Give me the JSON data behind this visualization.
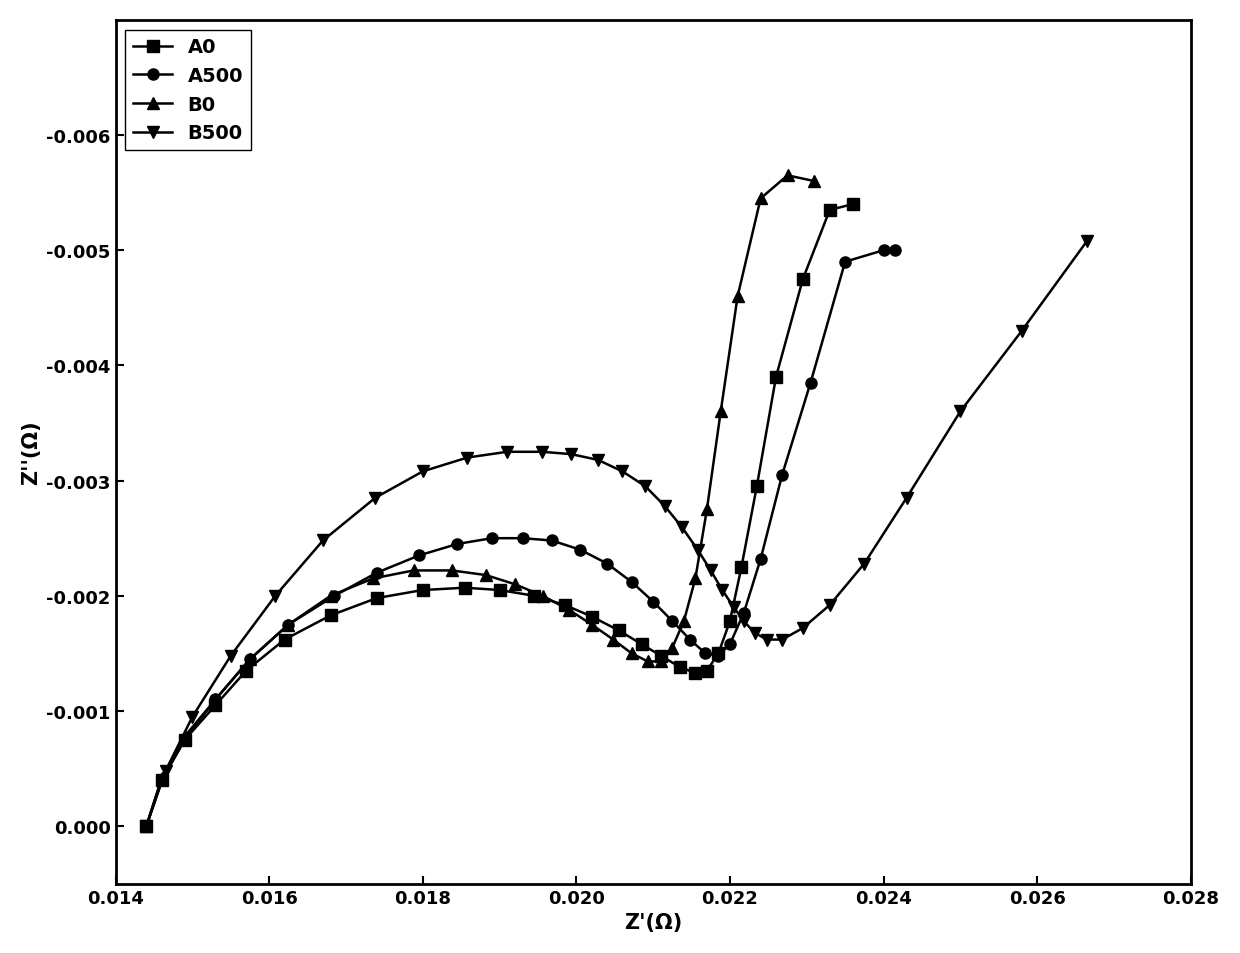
{
  "title": "",
  "xlabel": "Z'(Ω)",
  "ylabel": "Z''(Ω)",
  "xlim": [
    0.014,
    0.028
  ],
  "ylim": [
    0.0005,
    -0.007
  ],
  "xticks": [
    0.014,
    0.016,
    0.018,
    0.02,
    0.022,
    0.024,
    0.026,
    0.028
  ],
  "yticks": [
    0.0,
    -0.001,
    -0.002,
    -0.003,
    -0.004,
    -0.005,
    -0.006
  ],
  "series": [
    {
      "label": "A0",
      "marker": "s",
      "x": [
        0.0144,
        0.0146,
        0.0149,
        0.0153,
        0.0157,
        0.0162,
        0.0168,
        0.0174,
        0.018,
        0.01855,
        0.019,
        0.01945,
        0.01985,
        0.0202,
        0.02055,
        0.02085,
        0.0211,
        0.02135,
        0.02155,
        0.0217,
        0.02185,
        0.022,
        0.02215,
        0.02235,
        0.0226,
        0.02295,
        0.0233,
        0.0236
      ],
      "y": [
        0.0,
        -0.0004,
        -0.00075,
        -0.00105,
        -0.00135,
        -0.00162,
        -0.00183,
        -0.00198,
        -0.00205,
        -0.00207,
        -0.00205,
        -0.002,
        -0.00192,
        -0.00182,
        -0.0017,
        -0.00158,
        -0.00148,
        -0.00138,
        -0.00133,
        -0.00135,
        -0.0015,
        -0.00178,
        -0.00225,
        -0.00295,
        -0.0039,
        -0.00475,
        -0.00535,
        -0.0054
      ]
    },
    {
      "label": "A500",
      "marker": "o",
      "x": [
        0.0144,
        0.0146,
        0.0149,
        0.0153,
        0.01575,
        0.01625,
        0.01685,
        0.0174,
        0.01795,
        0.01845,
        0.0189,
        0.0193,
        0.01968,
        0.02005,
        0.0204,
        0.02072,
        0.021,
        0.02125,
        0.02148,
        0.02168,
        0.02185,
        0.022,
        0.02218,
        0.0224,
        0.02268,
        0.02305,
        0.0235,
        0.024,
        0.02415
      ],
      "y": [
        0.0,
        -0.0004,
        -0.00075,
        -0.0011,
        -0.00145,
        -0.00175,
        -0.002,
        -0.0022,
        -0.00235,
        -0.00245,
        -0.0025,
        -0.0025,
        -0.00248,
        -0.0024,
        -0.00228,
        -0.00212,
        -0.00195,
        -0.00178,
        -0.00162,
        -0.0015,
        -0.00148,
        -0.00158,
        -0.00185,
        -0.00232,
        -0.00305,
        -0.00385,
        -0.0049,
        -0.005,
        -0.005
      ]
    },
    {
      "label": "B0",
      "marker": "^",
      "x": [
        0.0144,
        0.0146,
        0.0149,
        0.0153,
        0.01575,
        0.01625,
        0.0168,
        0.01735,
        0.01788,
        0.01838,
        0.01882,
        0.0192,
        0.01956,
        0.0199,
        0.0202,
        0.02048,
        0.02072,
        0.02093,
        0.0211,
        0.02125,
        0.0214,
        0.02155,
        0.0217,
        0.02188,
        0.0221,
        0.0224,
        0.02275,
        0.0231
      ],
      "y": [
        0.0,
        -0.00042,
        -0.00078,
        -0.0011,
        -0.00145,
        -0.00175,
        -0.002,
        -0.00215,
        -0.00222,
        -0.00222,
        -0.00218,
        -0.0021,
        -0.002,
        -0.00188,
        -0.00175,
        -0.00162,
        -0.0015,
        -0.00143,
        -0.00143,
        -0.00155,
        -0.00178,
        -0.00215,
        -0.00275,
        -0.0036,
        -0.0046,
        -0.00545,
        -0.00565,
        -0.0056
      ]
    },
    {
      "label": "B500",
      "marker": "v",
      "x": [
        0.0144,
        0.01465,
        0.015,
        0.0155,
        0.01608,
        0.0167,
        0.01738,
        0.018,
        0.01858,
        0.0191,
        0.01955,
        0.01993,
        0.02028,
        0.0206,
        0.0209,
        0.02115,
        0.02137,
        0.02158,
        0.02175,
        0.0219,
        0.02205,
        0.02218,
        0.02232,
        0.02248,
        0.02268,
        0.02295,
        0.0233,
        0.02375,
        0.0243,
        0.025,
        0.0258,
        0.02665
      ],
      "y": [
        0.0,
        -0.00048,
        -0.00095,
        -0.00148,
        -0.002,
        -0.00248,
        -0.00285,
        -0.00308,
        -0.0032,
        -0.00325,
        -0.00325,
        -0.00323,
        -0.00318,
        -0.00308,
        -0.00295,
        -0.00278,
        -0.0026,
        -0.0024,
        -0.00222,
        -0.00205,
        -0.0019,
        -0.00178,
        -0.00168,
        -0.00162,
        -0.00162,
        -0.00172,
        -0.00192,
        -0.00228,
        -0.00285,
        -0.0036,
        -0.0043,
        -0.00508
      ]
    }
  ],
  "line_color": "#000000",
  "line_width": 1.8,
  "marker_size": 8,
  "background_color": "#ffffff",
  "legend_fontsize": 14,
  "tick_fontsize": 13,
  "label_fontsize": 15
}
